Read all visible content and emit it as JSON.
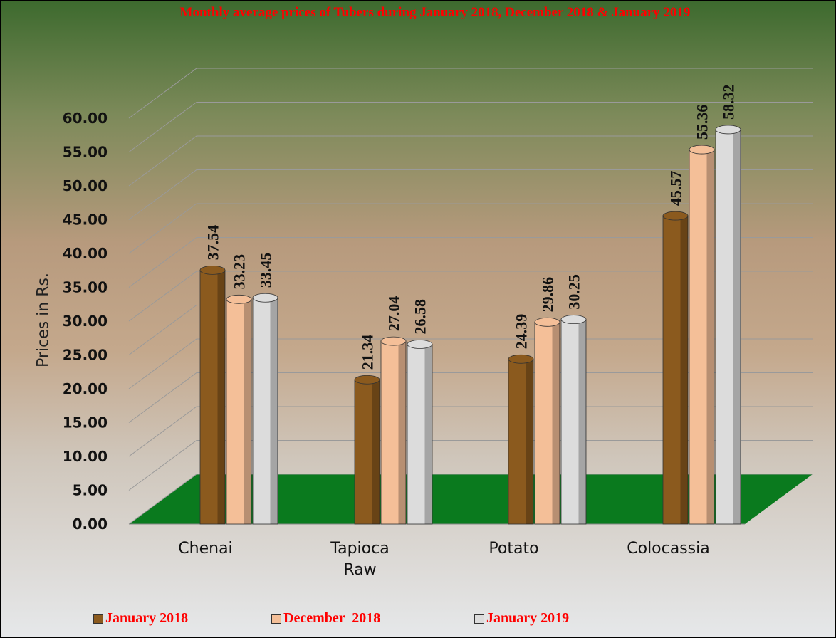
{
  "chart_data": {
    "type": "bar",
    "title": "Monthly average prices of Tubers during  January  2018, December  2018 & January  2019",
    "y_label": "Prices in Rs.",
    "categories": [
      "Chenai",
      "Tapioca Raw",
      "Potato",
      "Colocassia"
    ],
    "series": [
      {
        "name": "January 2018",
        "color": "#8b5a1e",
        "values": [
          37.54,
          21.34,
          24.39,
          45.57
        ]
      },
      {
        "name": "December  2018",
        "color": "#f4bf98",
        "values": [
          33.23,
          27.04,
          29.86,
          55.36
        ]
      },
      {
        "name": "January 2019",
        "color": "#dcdcdc",
        "values": [
          33.45,
          26.58,
          30.25,
          58.32
        ]
      }
    ],
    "ylim": [
      0,
      60
    ],
    "yticks": [
      {
        "value": 0,
        "label": "0.00"
      },
      {
        "value": 5,
        "label": "5.00"
      },
      {
        "value": 10,
        "label": "10.00"
      },
      {
        "value": 15,
        "label": "15.00"
      },
      {
        "value": 20,
        "label": "20.00"
      },
      {
        "value": 25,
        "label": "25.00"
      },
      {
        "value": 30,
        "label": "30.00"
      },
      {
        "value": 35,
        "label": "35.00"
      },
      {
        "value": 40,
        "label": "40.00"
      },
      {
        "value": 45,
        "label": "45.00"
      },
      {
        "value": 50,
        "label": "50.00"
      },
      {
        "value": 55,
        "label": "55.00"
      },
      {
        "value": 60,
        "label": "60.00"
      }
    ],
    "grid": true,
    "floor_color": "#0a7a1e",
    "title_color": "#ff0000"
  }
}
